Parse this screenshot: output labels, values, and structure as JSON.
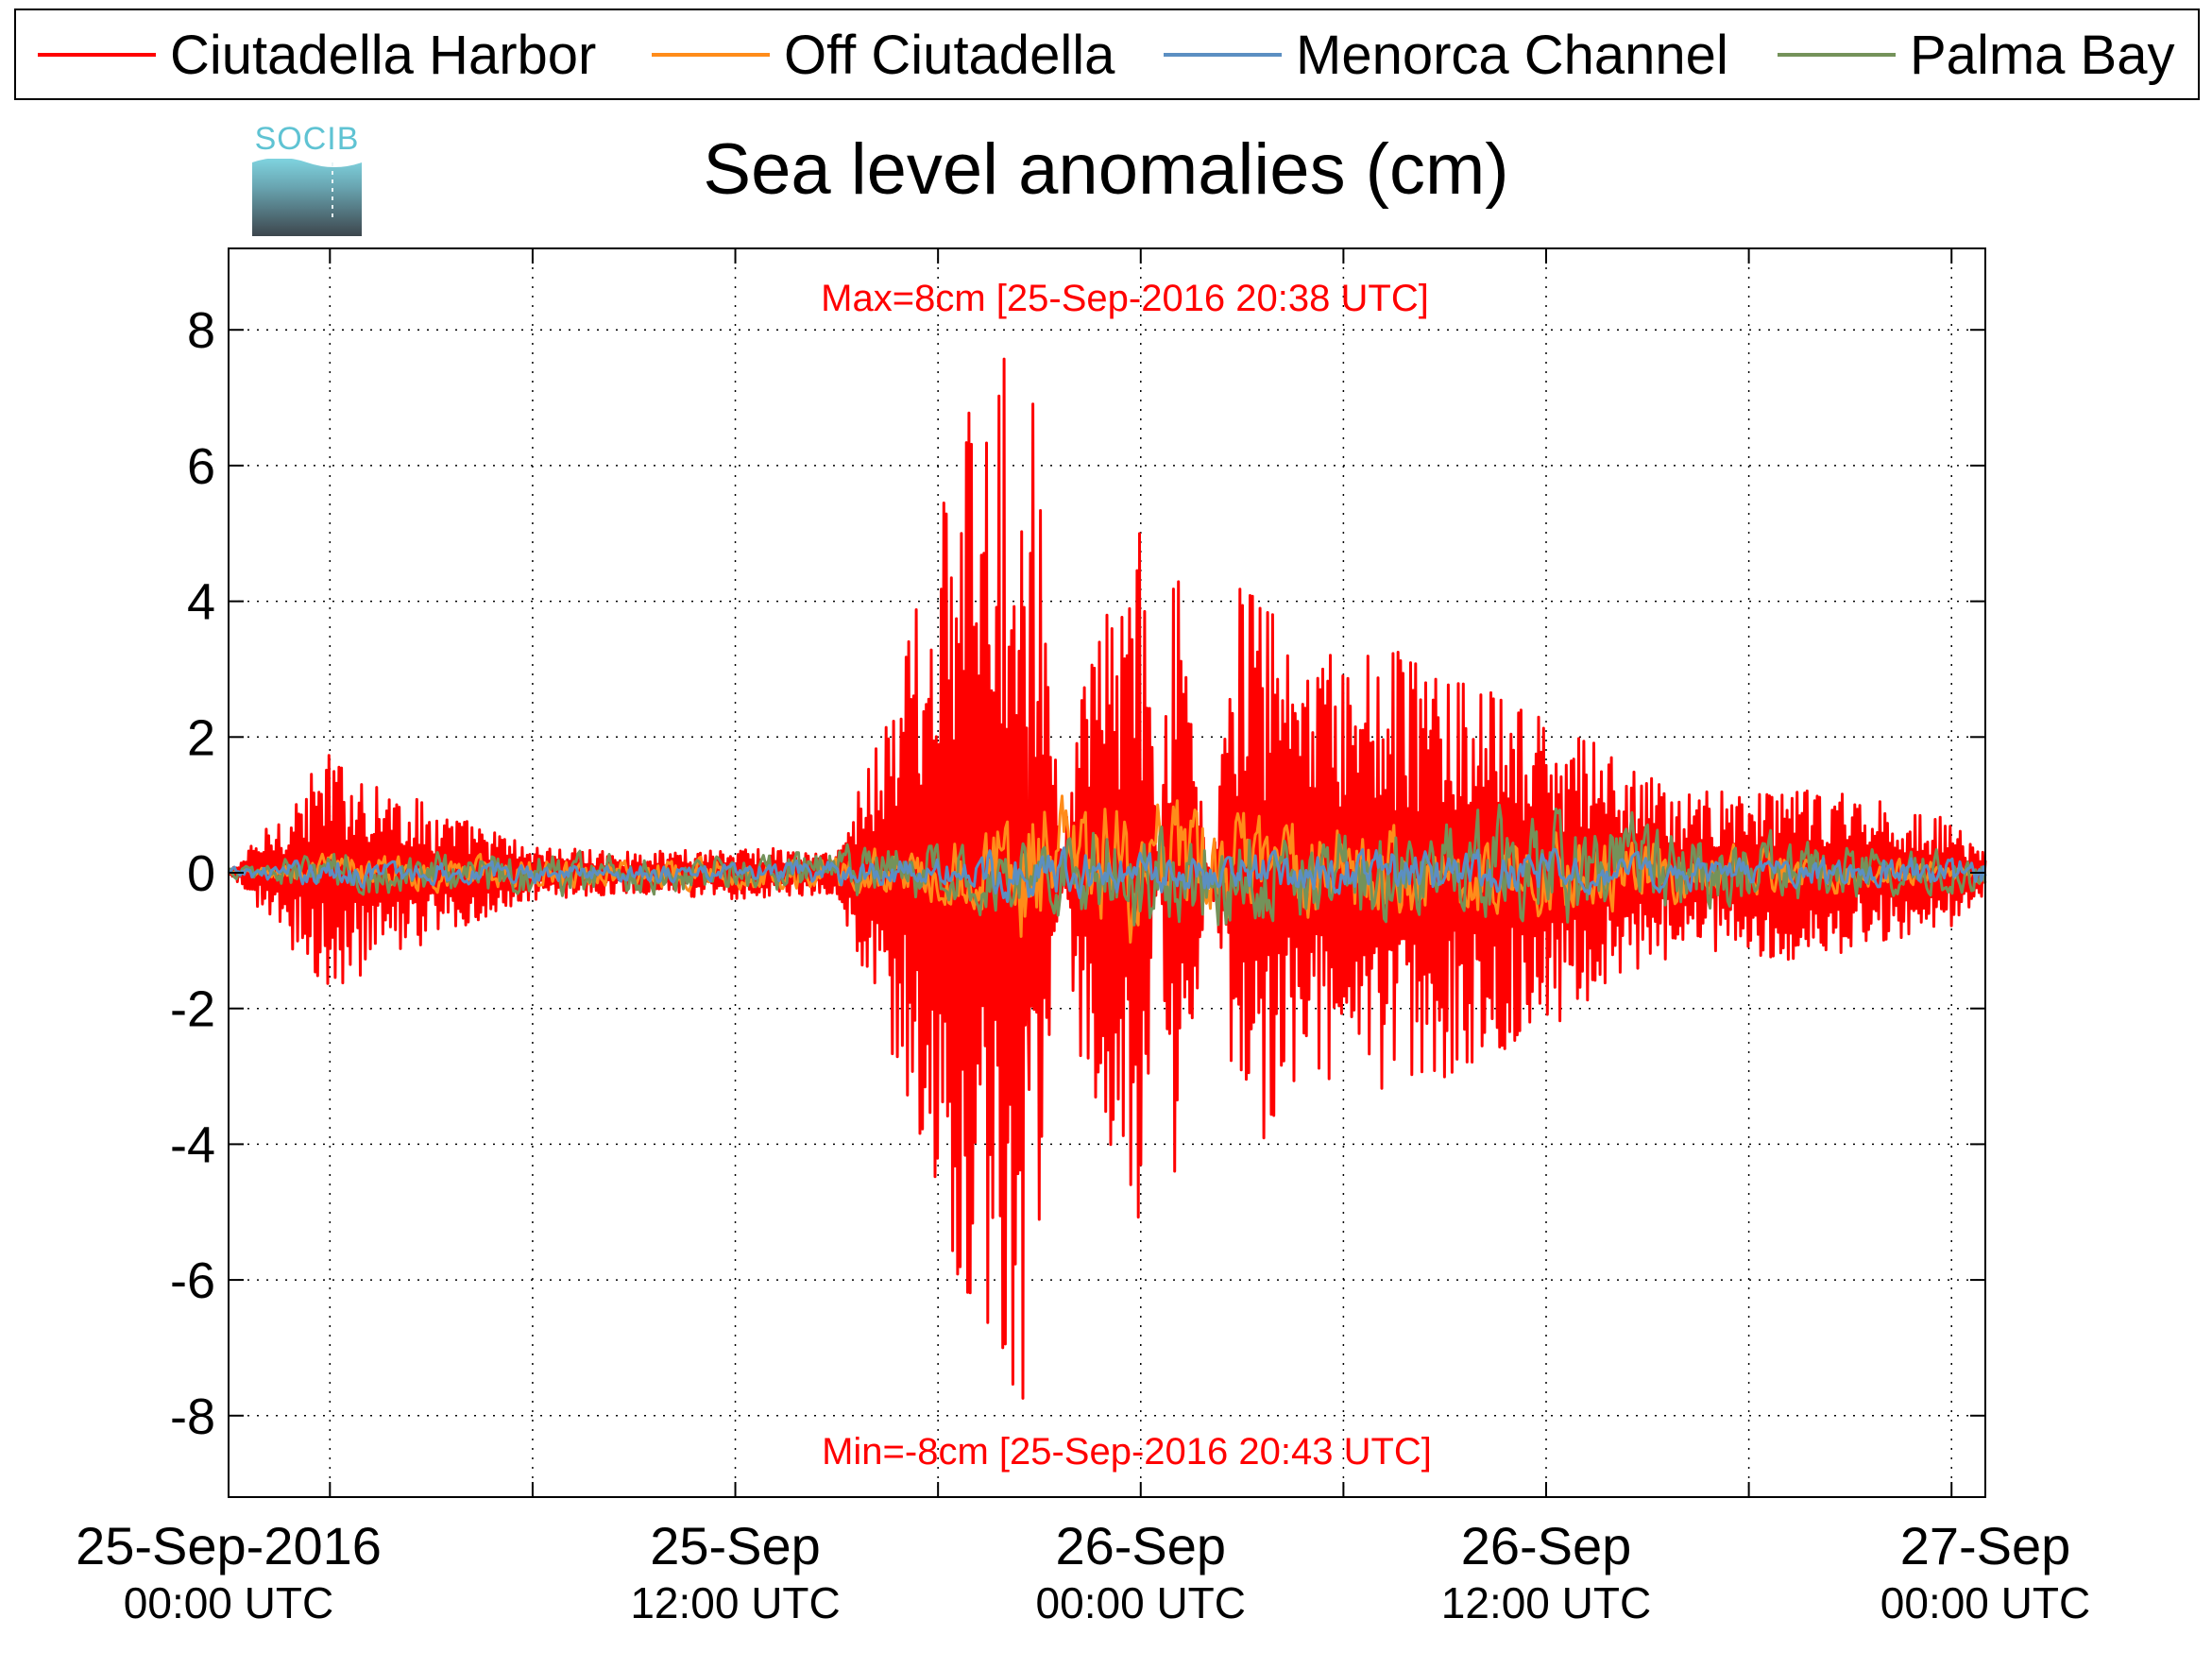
{
  "chart_data": {
    "type": "line",
    "title": "Sea level anomalies (cm)",
    "logo_text": "SOCIB",
    "xlabel": "",
    "ylabel": "",
    "x_range": [
      "2016-09-24T21:00:00Z",
      "2016-09-27T01:00:00Z"
    ],
    "ylim": [
      -9.2,
      9.2
    ],
    "y_ticks": [
      8,
      6,
      4,
      2,
      0,
      -2,
      -4,
      -6,
      -8
    ],
    "y_tick_labels": [
      "8",
      "6",
      "4",
      "2",
      "0",
      "-2",
      "-4",
      "-6",
      "-8"
    ],
    "x_major_ticks": [
      {
        "x": "2016-09-25T00:00:00Z",
        "line1": "25-Sep-2016",
        "line2": "00:00 UTC"
      },
      {
        "x": "2016-09-25T12:00:00Z",
        "line1": "25-Sep",
        "line2": "12:00 UTC"
      },
      {
        "x": "2016-09-26T00:00:00Z",
        "line1": "26-Sep",
        "line2": "00:00 UTC"
      },
      {
        "x": "2016-09-26T12:00:00Z",
        "line1": "26-Sep",
        "line2": "12:00 UTC"
      },
      {
        "x": "2016-09-27T00:00:00Z",
        "line1": "27-Sep",
        "line2": "00:00 UTC"
      }
    ],
    "grid": true,
    "legend_position": "top",
    "annotations": {
      "max": {
        "text": "Max=8cm [25-Sep-2016 20:38 UTC]",
        "color": "#ff0000"
      },
      "min": {
        "text": "Min=-8cm [25-Sep-2016 20:43 UTC]",
        "color": "#ff0000"
      }
    },
    "series": [
      {
        "name": "Ciutadella Harbor",
        "color": "#ff0000",
        "x": [
          "2016-09-24T21:00:00Z",
          "2016-09-25T00:00:00Z",
          "2016-09-25T03:00:00Z",
          "2016-09-25T06:00:00Z",
          "2016-09-25T09:00:00Z",
          "2016-09-25T12:00:00Z",
          "2016-09-25T15:00:00Z",
          "2016-09-25T17:00:00Z",
          "2016-09-25T19:00:00Z",
          "2016-09-25T20:38:00Z",
          "2016-09-25T20:43:00Z",
          "2016-09-25T22:00:00Z",
          "2016-09-26T00:00:00Z",
          "2016-09-26T01:00:00Z",
          "2016-09-26T03:00:00Z",
          "2016-09-26T05:00:00Z",
          "2016-09-26T08:00:00Z",
          "2016-09-26T12:00:00Z",
          "2016-09-26T16:00:00Z",
          "2016-09-26T20:00:00Z",
          "2016-09-27T00:00:00Z",
          "2016-09-27T01:00:00Z"
        ],
        "values": [
          0.0,
          1.8,
          1.0,
          0.4,
          0.3,
          0.4,
          0.3,
          3.4,
          7.0,
          8.0,
          -8.0,
          2.4,
          5.4,
          -5.0,
          4.6,
          3.2,
          3.3,
          2.3,
          1.2,
          1.3,
          0.8,
          0.3
        ]
      },
      {
        "name": "Off Ciutadella",
        "color": "#ff8c1a",
        "x": [
          "2016-09-24T21:00:00Z",
          "2016-09-25T00:00:00Z",
          "2016-09-25T06:00:00Z",
          "2016-09-25T12:00:00Z",
          "2016-09-25T18:00:00Z",
          "2016-09-25T20:38:00Z",
          "2016-09-26T00:00:00Z",
          "2016-09-26T06:00:00Z",
          "2016-09-26T12:00:00Z",
          "2016-09-26T18:00:00Z",
          "2016-09-27T01:00:00Z"
        ],
        "values": [
          0.0,
          0.4,
          0.3,
          0.3,
          0.6,
          1.6,
          1.5,
          1.0,
          0.9,
          0.5,
          0.2
        ]
      },
      {
        "name": "Menorca Channel",
        "color": "#5b8fc2",
        "x": [
          "2016-09-24T21:00:00Z",
          "2016-09-25T00:00:00Z",
          "2016-09-25T06:00:00Z",
          "2016-09-25T12:00:00Z",
          "2016-09-25T18:00:00Z",
          "2016-09-25T20:38:00Z",
          "2016-09-26T00:00:00Z",
          "2016-09-26T06:00:00Z",
          "2016-09-26T12:00:00Z",
          "2016-09-26T18:00:00Z",
          "2016-09-27T01:00:00Z"
        ],
        "values": [
          0.1,
          0.3,
          0.2,
          0.2,
          0.3,
          0.6,
          0.4,
          0.5,
          0.4,
          0.3,
          0.3
        ]
      },
      {
        "name": "Palma Bay",
        "color": "#74925a",
        "x": [
          "2016-09-24T21:00:00Z",
          "2016-09-25T00:00:00Z",
          "2016-09-25T06:00:00Z",
          "2016-09-25T12:00:00Z",
          "2016-09-25T18:00:00Z",
          "2016-09-25T20:38:00Z",
          "2016-09-26T00:00:00Z",
          "2016-09-26T06:00:00Z",
          "2016-09-26T12:00:00Z",
          "2016-09-26T18:00:00Z",
          "2016-09-27T01:00:00Z"
        ],
        "values": [
          0.1,
          0.5,
          0.5,
          0.4,
          0.7,
          0.8,
          1.3,
          1.0,
          1.4,
          0.8,
          0.4
        ]
      }
    ]
  }
}
